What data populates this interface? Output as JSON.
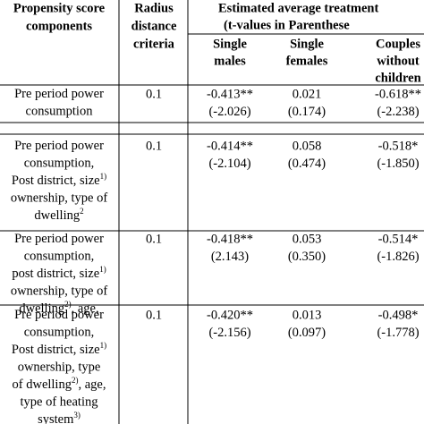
{
  "table": {
    "header": {
      "components": [
        "Propensity score",
        "components"
      ],
      "radius": [
        "Radius",
        "distance",
        "criteria"
      ],
      "effects": [
        "Estimated average treatment",
        "(t-values in Parenthese"
      ],
      "groups": [
        [
          "Single",
          "males"
        ],
        [
          "Single",
          "females"
        ],
        [
          "Couples",
          "without",
          "children"
        ]
      ]
    },
    "rows": [
      {
        "components": [
          [
            {
              "t": "Pre period power"
            }
          ],
          [
            {
              "t": "consumption"
            }
          ]
        ],
        "radius": "0.1",
        "effects": [
          [
            "-0.413**",
            "(-2.026)"
          ],
          [
            "0.021",
            "(0.174)"
          ],
          [
            "-0.618**",
            "(-2.238)"
          ]
        ]
      },
      {
        "components": [
          [
            {
              "t": "Pre period power"
            }
          ],
          [
            {
              "t": "consumption,"
            }
          ],
          [
            {
              "t": "Post district, size"
            },
            {
              "sup": "1)"
            }
          ],
          [
            {
              "t": "ownership, type of"
            }
          ],
          [
            {
              "t": "dwelling"
            },
            {
              "sup": "2"
            }
          ]
        ],
        "radius": "0.1",
        "effects": [
          [
            "-0.414**",
            "(-2.104)"
          ],
          [
            "0.058",
            "(0.474)"
          ],
          [
            "-0.518*",
            "(-1.850)"
          ]
        ]
      },
      {
        "components": [
          [
            {
              "t": "Pre period power"
            }
          ],
          [
            {
              "t": "consumption,"
            }
          ],
          [
            {
              "t": "post district, size"
            },
            {
              "sup": "1)"
            }
          ],
          [
            {
              "t": "ownership, type of"
            }
          ],
          [
            {
              "t": "dwelling"
            },
            {
              "sup": "2)"
            },
            {
              "t": ", age,"
            }
          ]
        ],
        "radius": "0.1",
        "effects": [
          [
            "-0.418**",
            "(2.143)"
          ],
          [
            "0.053",
            "(0.350)"
          ],
          [
            "-0.514*",
            "(-1.826)"
          ]
        ]
      },
      {
        "components": [
          [
            {
              "t": "Pre period power"
            }
          ],
          [
            {
              "t": "consumption,"
            }
          ],
          [
            {
              "t": "Post district, size"
            },
            {
              "sup": "1)"
            }
          ],
          [
            {
              "t": "ownership, type"
            }
          ],
          [
            {
              "t": "of dwelling"
            },
            {
              "sup": "2)"
            },
            {
              "t": ", age,"
            }
          ],
          [
            {
              "t": "type of heating"
            }
          ],
          [
            {
              "t": "system"
            },
            {
              "sup": "3)"
            }
          ]
        ],
        "radius": "0.1",
        "effects": [
          [
            "-0.420**",
            "(-2.156)"
          ],
          [
            "0.013",
            "(0.097)"
          ],
          [
            "-0.498*",
            "(-1.778)"
          ]
        ]
      }
    ]
  }
}
